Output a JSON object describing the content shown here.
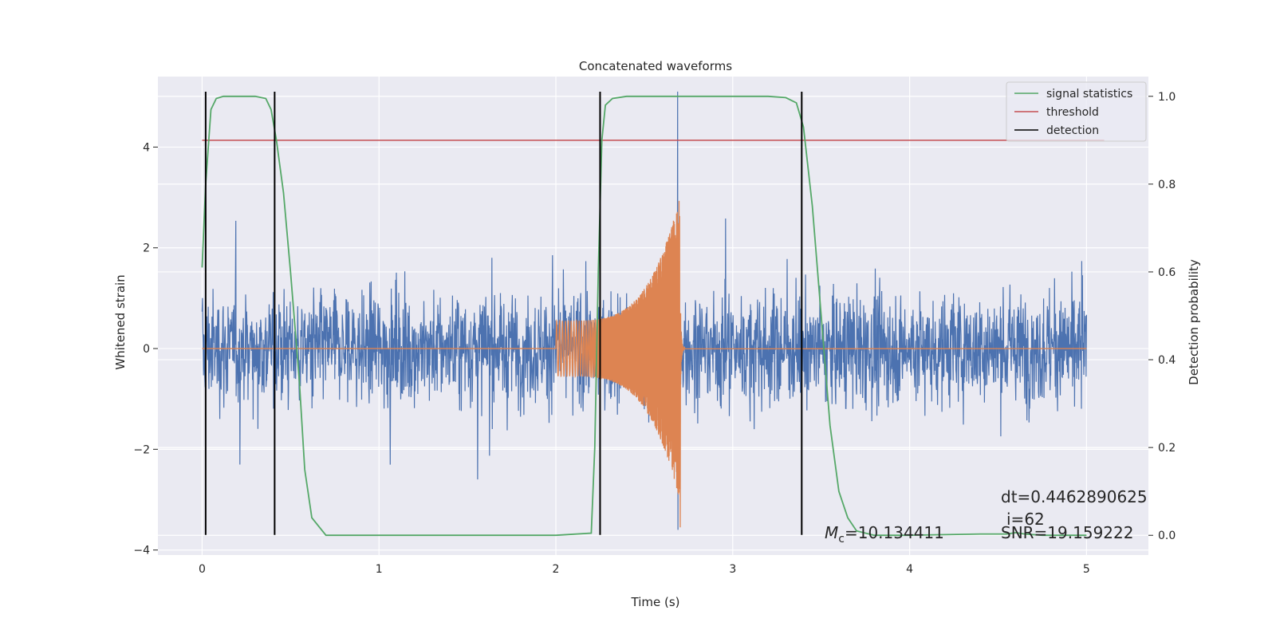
{
  "chart_data": {
    "type": "line",
    "title": "Concatenated waveforms",
    "xlabel": "Time (s)",
    "ylabel": "Whitened strain",
    "ylabel_right": "Detection probability",
    "xlim": [
      -0.25,
      5.35
    ],
    "ylim": [
      -4.1,
      5.4
    ],
    "ylim_right": [
      -0.045,
      1.045
    ],
    "xticks": [
      0,
      1,
      2,
      3,
      4,
      5
    ],
    "yticks": [
      -4,
      -2,
      0,
      2,
      4
    ],
    "yticks_right": [
      0.0,
      0.2,
      0.4,
      0.6,
      0.8,
      1.0
    ],
    "xtick_labels": [
      "0",
      "1",
      "2",
      "3",
      "4",
      "5"
    ],
    "ytick_labels": [
      "−4",
      "−2",
      "0",
      "2",
      "4"
    ],
    "ytick_right_labels": [
      "0.0",
      "0.2",
      "0.4",
      "0.6",
      "0.8",
      "1.0"
    ],
    "grid": true,
    "legend_position": "top-right",
    "colors": {
      "strain": "#4c72b0",
      "template": "#dd8452",
      "signal_statistics": "#55a868",
      "threshold": "#c44e52",
      "detection": "#000000",
      "plot_background": "#eaeaf2",
      "grid": "#ffffff"
    },
    "series": [
      {
        "name": "signal statistics",
        "axis": "right",
        "x": [
          0.0,
          0.02,
          0.05,
          0.08,
          0.12,
          0.3,
          0.36,
          0.39,
          0.42,
          0.46,
          0.5,
          0.55,
          0.58,
          0.62,
          0.7,
          1.0,
          2.0,
          2.2,
          2.22,
          2.24,
          2.26,
          2.28,
          2.32,
          2.4,
          3.2,
          3.3,
          3.36,
          3.4,
          3.45,
          3.5,
          3.55,
          3.6,
          3.65,
          3.7,
          3.8,
          4.0,
          4.4,
          4.55,
          4.6,
          4.65,
          4.75,
          5.0
        ],
        "y": [
          0.61,
          0.8,
          0.97,
          0.995,
          1.0,
          1.0,
          0.995,
          0.97,
          0.9,
          0.78,
          0.6,
          0.35,
          0.15,
          0.04,
          0.0,
          0.0,
          0.0,
          0.005,
          0.2,
          0.6,
          0.9,
          0.98,
          0.995,
          1.0,
          1.0,
          0.997,
          0.985,
          0.93,
          0.75,
          0.5,
          0.25,
          0.1,
          0.04,
          0.01,
          0.0,
          0.0,
          0.003,
          0.003,
          0.006,
          0.003,
          0.0,
          0.0
        ]
      },
      {
        "name": "threshold",
        "axis": "right",
        "x": [
          0.0,
          5.1
        ],
        "y": [
          0.9,
          0.9
        ]
      },
      {
        "name": "detection",
        "axis": "left",
        "x": [
          0.02,
          0.41,
          2.25,
          3.39
        ],
        "y_range": [
          -3.7,
          5.1
        ]
      }
    ],
    "strain_envelope": {
      "x_range": [
        0.0,
        5.0
      ],
      "typical_range": [
        -2.0,
        2.0
      ],
      "spike_range": [
        -3.6,
        5.1
      ],
      "spike_x": 2.69
    },
    "template_chirp": {
      "x_range": [
        2.0,
        2.72
      ],
      "amplitude_start": 0.55,
      "amplitude_peak": 3.0,
      "peak_x": 2.7,
      "min": -3.55
    },
    "annotations": {
      "dt": "dt=0.4462890625",
      "i": "i=62",
      "mc_symbol": "M",
      "mc_sub": "c",
      "mc_value": "=10.134411",
      "snr": "SNR=19.159222"
    }
  },
  "legend": {
    "items": [
      {
        "label": "signal statistics",
        "color": "#55a868"
      },
      {
        "label": "threshold",
        "color": "#c44e52"
      },
      {
        "label": "detection",
        "color": "#000000"
      }
    ]
  }
}
